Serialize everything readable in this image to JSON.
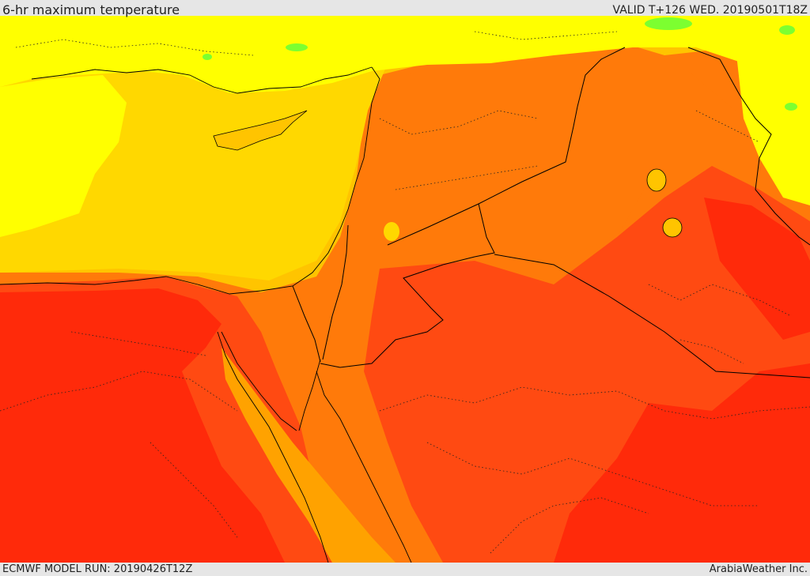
{
  "header": {
    "title": "6-hr maximum temperature",
    "valid": "VALID T+126 WED. 20190501T18Z"
  },
  "footer": {
    "model_run": "ECMWF MODEL RUN: 20190426T12Z",
    "credit": "ArabiaWeather Inc."
  },
  "palette": {
    "hot_red": "#ff2a0a",
    "red_orange": "#ff4a12",
    "orange": "#ff7a0a",
    "light_orange": "#ffa200",
    "amber": "#ffc400",
    "yellow_orange": "#ffd800",
    "yellow": "#ffff00",
    "green": "#7cff30",
    "border_color": "#000000"
  }
}
